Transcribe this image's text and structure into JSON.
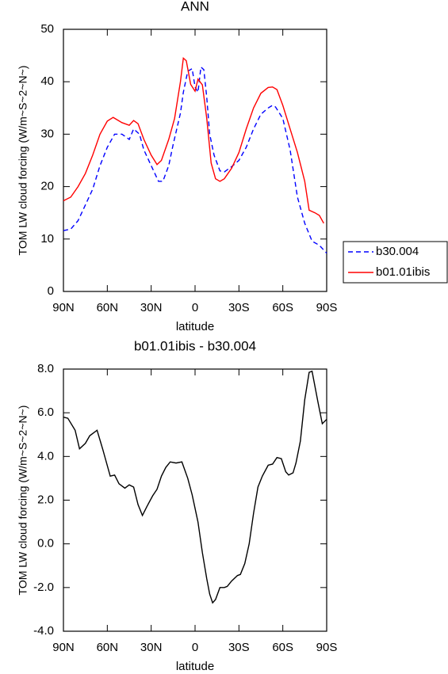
{
  "chart_data": [
    {
      "type": "line",
      "title": "ANN",
      "xlabel": "latitude",
      "ylabel": "TOM LW cloud forcing (W/m~S~2~N~)",
      "xlim": [
        90,
        -90
      ],
      "xticks": [
        {
          "value": 90,
          "label": "90N"
        },
        {
          "value": 60,
          "label": "60N"
        },
        {
          "value": 30,
          "label": "30N"
        },
        0,
        {
          "value": -30,
          "label": "30S"
        },
        {
          "value": -60,
          "label": "60S"
        },
        {
          "value": -90,
          "label": "90S"
        }
      ],
      "ylim": [
        0,
        50
      ],
      "yticks": [
        0,
        10,
        20,
        30,
        40,
        50
      ],
      "legend": "right",
      "series": [
        {
          "name": "b30.004",
          "color": "#0000ff",
          "dash": true,
          "x": [
            90,
            85,
            80,
            75,
            70,
            65,
            60,
            55,
            50,
            45,
            42,
            38,
            35,
            30,
            25,
            22,
            18,
            15,
            10,
            8,
            5,
            2,
            0,
            -2,
            -4,
            -6,
            -8,
            -10,
            -13,
            -17,
            -20,
            -25,
            -30,
            -35,
            -40,
            -45,
            -50,
            -53,
            -55,
            -60,
            -65,
            -70,
            -75,
            -80,
            -85,
            -90
          ],
          "values": [
            11.6,
            11.9,
            13.5,
            16.5,
            19.5,
            24,
            27.5,
            30,
            30,
            29,
            31,
            30,
            27,
            24,
            21,
            21,
            24,
            28,
            34,
            38,
            42,
            42.5,
            39,
            38,
            42.8,
            42.3,
            37,
            30,
            26,
            23,
            22.8,
            23.8,
            25,
            27.5,
            31,
            33.8,
            35,
            35.5,
            35.2,
            33,
            27,
            18,
            13,
            9.6,
            8.8,
            7.3
          ]
        },
        {
          "name": "b01.01ibis",
          "color": "#ff0000",
          "dash": false,
          "x": [
            90,
            85,
            80,
            75,
            70,
            65,
            60,
            56,
            50,
            45,
            42,
            39,
            35,
            30,
            26,
            23,
            18,
            14,
            10,
            8,
            6,
            3,
            0,
            -2,
            -5,
            -8,
            -11,
            -14,
            -17,
            -20,
            -25,
            -30,
            -35,
            -40,
            -45,
            -50,
            -53,
            -56,
            -60,
            -65,
            -70,
            -75,
            -78,
            -82,
            -85,
            -88
          ],
          "values": [
            17.3,
            18,
            20,
            22.5,
            26,
            30,
            32.5,
            33.2,
            32.2,
            31.7,
            32.6,
            32,
            29,
            26,
            24.2,
            25,
            29,
            33,
            40,
            44.5,
            44,
            39.5,
            38.2,
            40.5,
            39.4,
            33,
            24.5,
            21.5,
            21,
            21.5,
            23.5,
            26.5,
            31,
            35,
            37.8,
            38.9,
            39,
            38.5,
            35.5,
            31,
            26.5,
            21,
            15.5,
            15,
            14.5,
            13
          ]
        }
      ]
    },
    {
      "type": "line",
      "title": "b01.01ibis - b30.004",
      "xlabel": "latitude",
      "ylabel": "TOM LW cloud forcing (W/m~S~2~N~)",
      "xlim": [
        90,
        -90
      ],
      "xticks": [
        {
          "value": 90,
          "label": "90N"
        },
        {
          "value": 60,
          "label": "60N"
        },
        {
          "value": 30,
          "label": "30N"
        },
        0,
        {
          "value": -30,
          "label": "30S"
        },
        {
          "value": -60,
          "label": "60S"
        },
        {
          "value": -90,
          "label": "90S"
        }
      ],
      "ylim": [
        -4,
        8
      ],
      "yticks": [
        {
          "value": -4,
          "label": "-4.0"
        },
        {
          "value": -2,
          "label": "-2.0"
        },
        {
          "value": 0,
          "label": "0.0"
        },
        {
          "value": 2,
          "label": "2.0"
        },
        {
          "value": 4,
          "label": "4.0"
        },
        {
          "value": 6,
          "label": "6.0"
        },
        {
          "value": 8,
          "label": "8.0"
        }
      ],
      "series": [
        {
          "color": "#000000",
          "dash": false,
          "x": [
            90,
            87,
            82,
            79,
            75,
            72,
            67,
            63,
            58,
            55,
            52,
            48,
            45,
            42,
            39,
            36,
            33,
            29,
            26,
            23,
            20,
            17,
            13,
            9,
            5,
            2,
            -2,
            -5,
            -8,
            -10,
            -12,
            -14,
            -17,
            -20,
            -22,
            -25,
            -29,
            -31,
            -34,
            -37,
            -40,
            -43,
            -46,
            -50,
            -53,
            -56,
            -59,
            -62,
            -64,
            -67,
            -69,
            -72,
            -75,
            -78,
            -80,
            -84,
            -87,
            -90
          ],
          "values": [
            5.8,
            5.75,
            5.2,
            4.35,
            4.6,
            4.95,
            5.2,
            4.3,
            3.1,
            3.15,
            2.75,
            2.55,
            2.7,
            2.6,
            1.8,
            1.3,
            1.7,
            2.2,
            2.5,
            3.1,
            3.5,
            3.75,
            3.7,
            3.75,
            3.0,
            2.25,
            1.0,
            -0.4,
            -1.6,
            -2.3,
            -2.7,
            -2.55,
            -2.0,
            -2.0,
            -1.95,
            -1.7,
            -1.45,
            -1.4,
            -0.9,
            0.0,
            1.4,
            2.6,
            3.1,
            3.6,
            3.65,
            3.95,
            3.9,
            3.3,
            3.15,
            3.25,
            3.7,
            4.7,
            6.6,
            7.85,
            7.9,
            6.5,
            5.5,
            5.7
          ]
        }
      ]
    }
  ]
}
